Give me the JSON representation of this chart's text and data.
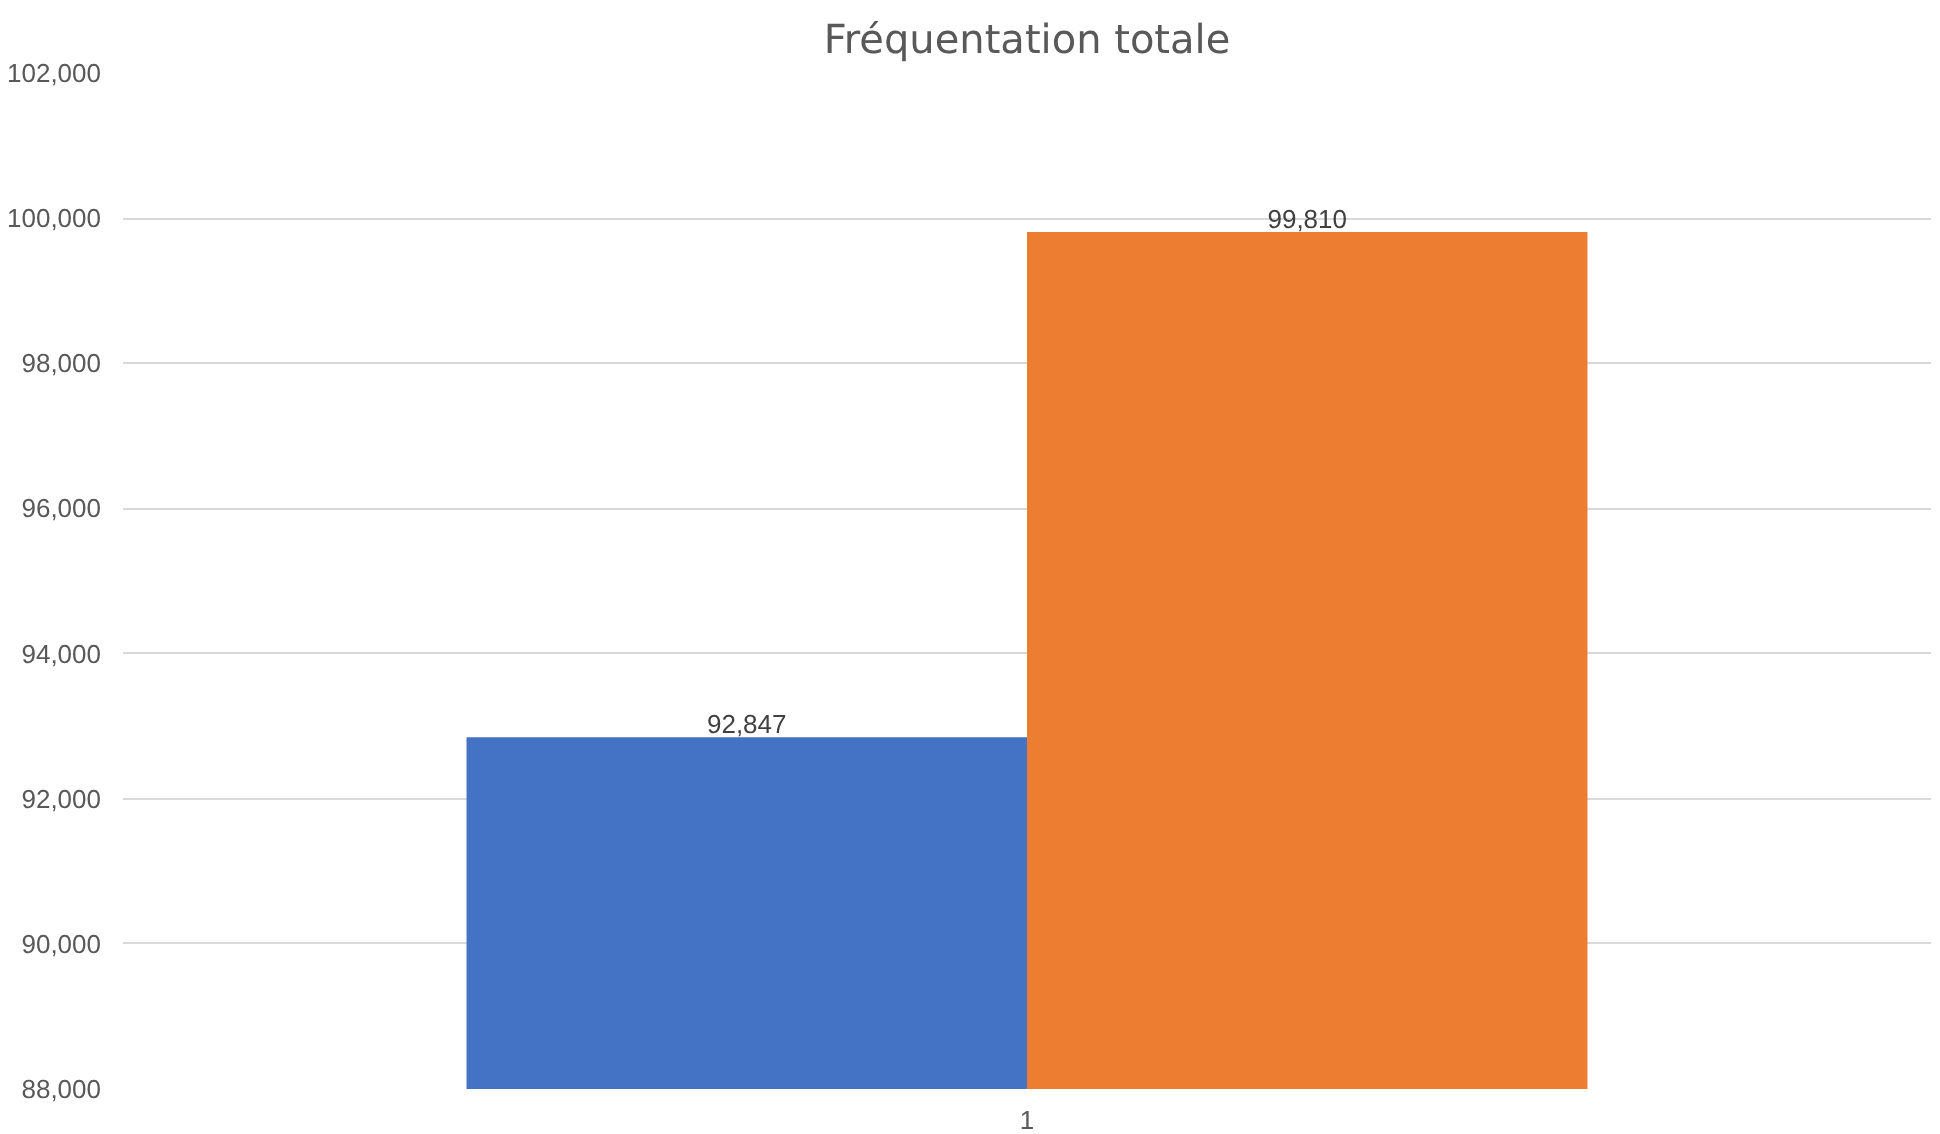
{
  "chart_data": {
    "type": "bar",
    "title": "Fréquentation totale",
    "categories": [
      "1"
    ],
    "series": [
      {
        "color": "#4472c4",
        "values": [
          92847
        ],
        "value_labels": [
          "92,847"
        ]
      },
      {
        "color": "#ed7d31",
        "values": [
          99810
        ],
        "value_labels": [
          "99,810"
        ]
      }
    ],
    "ylim": [
      88000,
      102000
    ],
    "yticks": [
      {
        "value": 88000,
        "label": "88,000"
      },
      {
        "value": 90000,
        "label": "90,000"
      },
      {
        "value": 92000,
        "label": "92,000"
      },
      {
        "value": 94000,
        "label": "94,000"
      },
      {
        "value": 96000,
        "label": "96,000"
      },
      {
        "value": 98000,
        "label": "98,000"
      },
      {
        "value": 100000,
        "label": "100,000"
      },
      {
        "value": 102000,
        "label": "102,000"
      }
    ],
    "grid": "y"
  }
}
